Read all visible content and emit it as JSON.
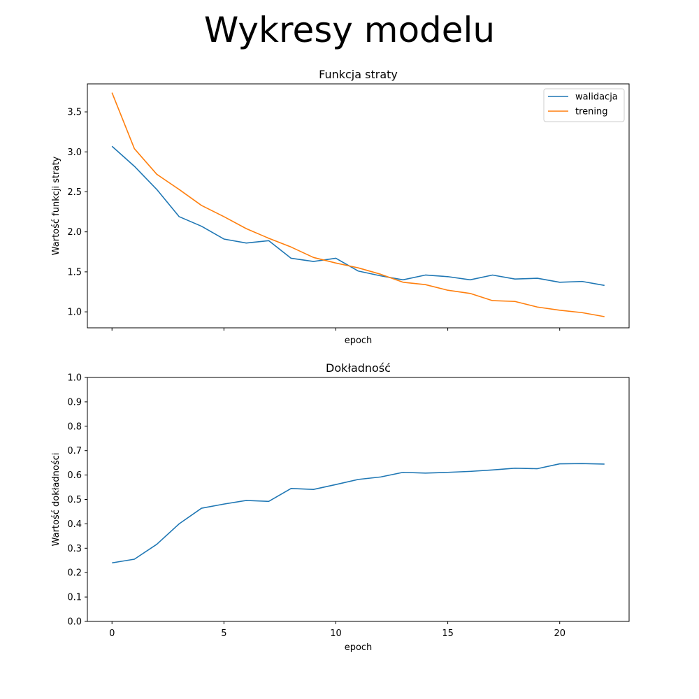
{
  "suptitle": "Wykresy modelu",
  "chart_data": [
    {
      "type": "line",
      "title": "Funkcja straty",
      "xlabel": "epoch",
      "ylabel": "Wartość funkcji straty",
      "xlim": [
        -1.1,
        23.1
      ],
      "ylim": [
        0.8,
        3.85
      ],
      "xticks": [
        0,
        5,
        10,
        15,
        20
      ],
      "show_xtick_labels": false,
      "yticks": [
        1.0,
        1.5,
        2.0,
        2.5,
        3.0,
        3.5
      ],
      "ytick_labels": [
        "1.0",
        "1.5",
        "2.0",
        "2.5",
        "3.0",
        "3.5"
      ],
      "legend_position": "top-right",
      "grid": false,
      "x": [
        0,
        1,
        2,
        3,
        4,
        5,
        6,
        7,
        8,
        9,
        10,
        11,
        12,
        13,
        14,
        15,
        16,
        17,
        18,
        19,
        20,
        21,
        22
      ],
      "series": [
        {
          "name": "walidacja",
          "color": "#1f77b4",
          "values": [
            3.07,
            2.82,
            2.53,
            2.19,
            2.07,
            1.91,
            1.86,
            1.89,
            1.67,
            1.63,
            1.67,
            1.51,
            1.45,
            1.4,
            1.46,
            1.44,
            1.4,
            1.46,
            1.41,
            1.42,
            1.37,
            1.38,
            1.33
          ]
        },
        {
          "name": "trening",
          "color": "#ff7f0e",
          "values": [
            3.74,
            3.04,
            2.72,
            2.53,
            2.33,
            2.19,
            2.04,
            1.92,
            1.81,
            1.68,
            1.61,
            1.55,
            1.47,
            1.37,
            1.34,
            1.27,
            1.23,
            1.14,
            1.13,
            1.06,
            1.02,
            0.99,
            0.94
          ]
        }
      ]
    },
    {
      "type": "line",
      "title": "Dokładność",
      "xlabel": "epoch",
      "ylabel": "Wartość dokładności",
      "xlim": [
        -1.1,
        23.1
      ],
      "ylim": [
        0.0,
        1.0
      ],
      "xticks": [
        0,
        5,
        10,
        15,
        20
      ],
      "xtick_labels": [
        "0",
        "5",
        "10",
        "15",
        "20"
      ],
      "show_xtick_labels": true,
      "yticks": [
        0.0,
        0.1,
        0.2,
        0.3,
        0.4,
        0.5,
        0.6,
        0.7,
        0.8,
        0.9,
        1.0
      ],
      "ytick_labels": [
        "0.0",
        "0.1",
        "0.2",
        "0.3",
        "0.4",
        "0.5",
        "0.6",
        "0.7",
        "0.8",
        "0.9",
        "1.0"
      ],
      "grid": false,
      "x": [
        0,
        1,
        2,
        3,
        4,
        5,
        6,
        7,
        8,
        9,
        10,
        11,
        12,
        13,
        14,
        15,
        16,
        17,
        18,
        19,
        20,
        21,
        22
      ],
      "series": [
        {
          "color": "#1f77b4",
          "values": [
            0.24,
            0.255,
            0.316,
            0.4,
            0.464,
            0.481,
            0.496,
            0.492,
            0.545,
            0.541,
            0.561,
            0.582,
            0.592,
            0.611,
            0.608,
            0.611,
            0.615,
            0.621,
            0.628,
            0.626,
            0.646,
            0.647,
            0.645
          ]
        }
      ]
    }
  ]
}
